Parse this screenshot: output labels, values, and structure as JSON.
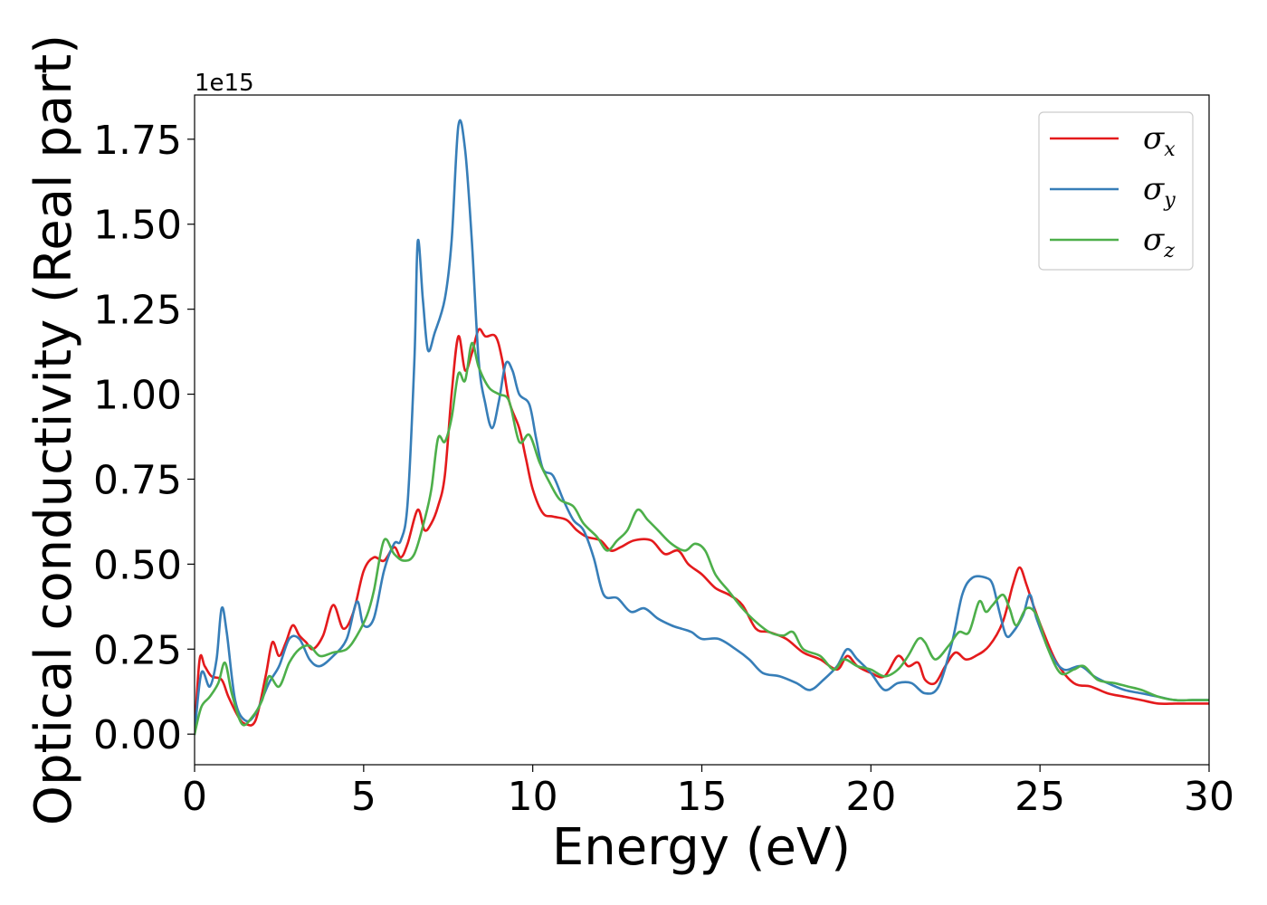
{
  "chart_data": {
    "type": "line",
    "xlabel": "Energy (eV)",
    "ylabel": "Optical conductivity (Real part)",
    "y_offset_label": "1e15",
    "xlim": [
      0,
      30
    ],
    "ylim": [
      -0.09,
      1.88
    ],
    "x_ticks": [
      0,
      5,
      10,
      15,
      20,
      25,
      30
    ],
    "x_tick_labels": [
      "0",
      "5",
      "10",
      "15",
      "20",
      "25",
      "30"
    ],
    "y_ticks": [
      0.0,
      0.25,
      0.5,
      0.75,
      1.0,
      1.25,
      1.5,
      1.75
    ],
    "y_tick_labels": [
      "0.00",
      "0.25",
      "0.50",
      "0.75",
      "1.00",
      "1.25",
      "1.50",
      "1.75"
    ],
    "grid": false,
    "legend_position": "top-right",
    "series": [
      {
        "name": "σx",
        "legend_symbol": "σ",
        "legend_sub": "x",
        "color": "#e41a1c",
        "points": [
          [
            0,
            0.0
          ],
          [
            0.15,
            0.22
          ],
          [
            0.3,
            0.2
          ],
          [
            0.5,
            0.17
          ],
          [
            0.8,
            0.16
          ],
          [
            1.0,
            0.11
          ],
          [
            1.3,
            0.05
          ],
          [
            1.5,
            0.03
          ],
          [
            1.8,
            0.04
          ],
          [
            2.1,
            0.17
          ],
          [
            2.3,
            0.27
          ],
          [
            2.5,
            0.23
          ],
          [
            2.7,
            0.27
          ],
          [
            2.9,
            0.32
          ],
          [
            3.1,
            0.29
          ],
          [
            3.3,
            0.27
          ],
          [
            3.5,
            0.25
          ],
          [
            3.8,
            0.29
          ],
          [
            4.1,
            0.38
          ],
          [
            4.4,
            0.31
          ],
          [
            4.7,
            0.36
          ],
          [
            5.0,
            0.48
          ],
          [
            5.3,
            0.52
          ],
          [
            5.6,
            0.51
          ],
          [
            5.9,
            0.55
          ],
          [
            6.1,
            0.52
          ],
          [
            6.3,
            0.56
          ],
          [
            6.6,
            0.66
          ],
          [
            6.8,
            0.6
          ],
          [
            7.0,
            0.62
          ],
          [
            7.2,
            0.67
          ],
          [
            7.4,
            0.76
          ],
          [
            7.6,
            1.0
          ],
          [
            7.8,
            1.17
          ],
          [
            8.0,
            1.07
          ],
          [
            8.2,
            1.12
          ],
          [
            8.4,
            1.19
          ],
          [
            8.6,
            1.17
          ],
          [
            8.9,
            1.17
          ],
          [
            9.1,
            1.1
          ],
          [
            9.3,
            0.98
          ],
          [
            9.6,
            0.9
          ],
          [
            9.8,
            0.81
          ],
          [
            10.0,
            0.72
          ],
          [
            10.3,
            0.65
          ],
          [
            10.6,
            0.64
          ],
          [
            11.0,
            0.63
          ],
          [
            11.3,
            0.6
          ],
          [
            11.6,
            0.58
          ],
          [
            12.0,
            0.57
          ],
          [
            12.3,
            0.54
          ],
          [
            12.6,
            0.55
          ],
          [
            13.0,
            0.57
          ],
          [
            13.5,
            0.57
          ],
          [
            13.9,
            0.53
          ],
          [
            14.3,
            0.54
          ],
          [
            14.6,
            0.5
          ],
          [
            15.0,
            0.47
          ],
          [
            15.4,
            0.43
          ],
          [
            15.8,
            0.41
          ],
          [
            16.2,
            0.38
          ],
          [
            16.6,
            0.31
          ],
          [
            17.0,
            0.3
          ],
          [
            17.5,
            0.28
          ],
          [
            18.0,
            0.24
          ],
          [
            18.5,
            0.22
          ],
          [
            19.0,
            0.19
          ],
          [
            19.3,
            0.23
          ],
          [
            19.6,
            0.2
          ],
          [
            20.0,
            0.18
          ],
          [
            20.4,
            0.17
          ],
          [
            20.8,
            0.23
          ],
          [
            21.1,
            0.2
          ],
          [
            21.4,
            0.21
          ],
          [
            21.6,
            0.16
          ],
          [
            21.9,
            0.15
          ],
          [
            22.2,
            0.2
          ],
          [
            22.5,
            0.24
          ],
          [
            22.8,
            0.22
          ],
          [
            23.1,
            0.23
          ],
          [
            23.5,
            0.26
          ],
          [
            23.9,
            0.33
          ],
          [
            24.2,
            0.44
          ],
          [
            24.4,
            0.49
          ],
          [
            24.6,
            0.44
          ],
          [
            24.8,
            0.38
          ],
          [
            25.1,
            0.3
          ],
          [
            25.5,
            0.21
          ],
          [
            26.0,
            0.15
          ],
          [
            26.5,
            0.14
          ],
          [
            27.0,
            0.12
          ],
          [
            27.5,
            0.11
          ],
          [
            28.0,
            0.1
          ],
          [
            28.5,
            0.09
          ],
          [
            29.0,
            0.09
          ],
          [
            29.5,
            0.09
          ],
          [
            30.0,
            0.09
          ]
        ]
      },
      {
        "name": "σy",
        "legend_symbol": "σ",
        "legend_sub": "y",
        "color": "#377eb8",
        "points": [
          [
            0,
            0.0
          ],
          [
            0.2,
            0.18
          ],
          [
            0.45,
            0.14
          ],
          [
            0.65,
            0.22
          ],
          [
            0.8,
            0.37
          ],
          [
            0.95,
            0.3
          ],
          [
            1.2,
            0.1
          ],
          [
            1.5,
            0.04
          ],
          [
            1.8,
            0.06
          ],
          [
            2.2,
            0.15
          ],
          [
            2.5,
            0.2
          ],
          [
            2.8,
            0.28
          ],
          [
            3.1,
            0.28
          ],
          [
            3.4,
            0.22
          ],
          [
            3.7,
            0.2
          ],
          [
            4.1,
            0.23
          ],
          [
            4.5,
            0.28
          ],
          [
            4.8,
            0.39
          ],
          [
            5.0,
            0.32
          ],
          [
            5.3,
            0.34
          ],
          [
            5.6,
            0.48
          ],
          [
            5.9,
            0.56
          ],
          [
            6.1,
            0.57
          ],
          [
            6.3,
            0.68
          ],
          [
            6.5,
            1.1
          ],
          [
            6.6,
            1.45
          ],
          [
            6.75,
            1.28
          ],
          [
            6.9,
            1.13
          ],
          [
            7.1,
            1.18
          ],
          [
            7.4,
            1.28
          ],
          [
            7.6,
            1.45
          ],
          [
            7.8,
            1.79
          ],
          [
            8.0,
            1.72
          ],
          [
            8.2,
            1.45
          ],
          [
            8.4,
            1.1
          ],
          [
            8.6,
            0.97
          ],
          [
            8.8,
            0.9
          ],
          [
            9.0,
            0.98
          ],
          [
            9.2,
            1.09
          ],
          [
            9.4,
            1.07
          ],
          [
            9.6,
            1.0
          ],
          [
            9.9,
            0.97
          ],
          [
            10.1,
            0.87
          ],
          [
            10.3,
            0.78
          ],
          [
            10.6,
            0.76
          ],
          [
            10.9,
            0.69
          ],
          [
            11.2,
            0.63
          ],
          [
            11.5,
            0.6
          ],
          [
            11.8,
            0.52
          ],
          [
            12.1,
            0.41
          ],
          [
            12.5,
            0.4
          ],
          [
            12.9,
            0.36
          ],
          [
            13.3,
            0.37
          ],
          [
            13.7,
            0.34
          ],
          [
            14.1,
            0.32
          ],
          [
            14.4,
            0.31
          ],
          [
            14.7,
            0.3
          ],
          [
            15.0,
            0.28
          ],
          [
            15.5,
            0.28
          ],
          [
            16.0,
            0.25
          ],
          [
            16.4,
            0.22
          ],
          [
            16.8,
            0.18
          ],
          [
            17.3,
            0.17
          ],
          [
            17.8,
            0.15
          ],
          [
            18.2,
            0.13
          ],
          [
            18.6,
            0.16
          ],
          [
            19.0,
            0.2
          ],
          [
            19.3,
            0.25
          ],
          [
            19.6,
            0.22
          ],
          [
            20.0,
            0.18
          ],
          [
            20.4,
            0.13
          ],
          [
            20.8,
            0.15
          ],
          [
            21.2,
            0.15
          ],
          [
            21.6,
            0.12
          ],
          [
            22.0,
            0.14
          ],
          [
            22.4,
            0.27
          ],
          [
            22.7,
            0.41
          ],
          [
            23.0,
            0.46
          ],
          [
            23.4,
            0.46
          ],
          [
            23.6,
            0.44
          ],
          [
            23.8,
            0.36
          ],
          [
            24.0,
            0.29
          ],
          [
            24.2,
            0.3
          ],
          [
            24.5,
            0.35
          ],
          [
            24.7,
            0.41
          ],
          [
            24.9,
            0.34
          ],
          [
            25.3,
            0.24
          ],
          [
            25.7,
            0.19
          ],
          [
            26.2,
            0.2
          ],
          [
            26.6,
            0.17
          ],
          [
            27.0,
            0.15
          ],
          [
            27.5,
            0.13
          ],
          [
            28.0,
            0.12
          ],
          [
            28.5,
            0.11
          ],
          [
            29.0,
            0.1
          ],
          [
            29.5,
            0.1
          ],
          [
            30.0,
            0.1
          ]
        ]
      },
      {
        "name": "σz",
        "legend_symbol": "σ",
        "legend_sub": "z",
        "color": "#4daf4a",
        "points": [
          [
            0,
            0.0
          ],
          [
            0.2,
            0.08
          ],
          [
            0.45,
            0.11
          ],
          [
            0.7,
            0.15
          ],
          [
            0.9,
            0.21
          ],
          [
            1.1,
            0.12
          ],
          [
            1.4,
            0.03
          ],
          [
            1.7,
            0.05
          ],
          [
            2.0,
            0.1
          ],
          [
            2.2,
            0.17
          ],
          [
            2.5,
            0.14
          ],
          [
            2.8,
            0.21
          ],
          [
            3.1,
            0.25
          ],
          [
            3.4,
            0.26
          ],
          [
            3.7,
            0.23
          ],
          [
            4.1,
            0.24
          ],
          [
            4.5,
            0.25
          ],
          [
            4.8,
            0.29
          ],
          [
            5.1,
            0.35
          ],
          [
            5.3,
            0.42
          ],
          [
            5.6,
            0.57
          ],
          [
            5.9,
            0.53
          ],
          [
            6.2,
            0.51
          ],
          [
            6.5,
            0.53
          ],
          [
            6.8,
            0.63
          ],
          [
            7.0,
            0.72
          ],
          [
            7.2,
            0.87
          ],
          [
            7.4,
            0.86
          ],
          [
            7.6,
            0.93
          ],
          [
            7.8,
            1.06
          ],
          [
            8.0,
            1.04
          ],
          [
            8.2,
            1.15
          ],
          [
            8.4,
            1.08
          ],
          [
            8.7,
            1.02
          ],
          [
            9.0,
            1.0
          ],
          [
            9.3,
            0.98
          ],
          [
            9.6,
            0.86
          ],
          [
            9.9,
            0.88
          ],
          [
            10.2,
            0.8
          ],
          [
            10.5,
            0.74
          ],
          [
            10.8,
            0.69
          ],
          [
            11.2,
            0.67
          ],
          [
            11.5,
            0.62
          ],
          [
            11.9,
            0.58
          ],
          [
            12.2,
            0.54
          ],
          [
            12.5,
            0.57
          ],
          [
            12.8,
            0.6
          ],
          [
            13.1,
            0.66
          ],
          [
            13.4,
            0.63
          ],
          [
            13.7,
            0.6
          ],
          [
            14.1,
            0.56
          ],
          [
            14.5,
            0.54
          ],
          [
            14.8,
            0.56
          ],
          [
            15.1,
            0.54
          ],
          [
            15.4,
            0.47
          ],
          [
            15.8,
            0.42
          ],
          [
            16.2,
            0.37
          ],
          [
            16.6,
            0.33
          ],
          [
            17.0,
            0.3
          ],
          [
            17.4,
            0.29
          ],
          [
            17.7,
            0.3
          ],
          [
            18.0,
            0.25
          ],
          [
            18.5,
            0.23
          ],
          [
            18.9,
            0.19
          ],
          [
            19.2,
            0.22
          ],
          [
            19.6,
            0.2
          ],
          [
            20.0,
            0.19
          ],
          [
            20.4,
            0.17
          ],
          [
            20.8,
            0.19
          ],
          [
            21.1,
            0.23
          ],
          [
            21.4,
            0.28
          ],
          [
            21.6,
            0.27
          ],
          [
            21.9,
            0.22
          ],
          [
            22.3,
            0.26
          ],
          [
            22.6,
            0.3
          ],
          [
            22.9,
            0.3
          ],
          [
            23.2,
            0.39
          ],
          [
            23.4,
            0.36
          ],
          [
            23.6,
            0.38
          ],
          [
            23.9,
            0.41
          ],
          [
            24.1,
            0.37
          ],
          [
            24.3,
            0.32
          ],
          [
            24.6,
            0.37
          ],
          [
            24.9,
            0.35
          ],
          [
            25.2,
            0.26
          ],
          [
            25.6,
            0.18
          ],
          [
            26.0,
            0.19
          ],
          [
            26.3,
            0.2
          ],
          [
            26.7,
            0.16
          ],
          [
            27.2,
            0.15
          ],
          [
            27.6,
            0.14
          ],
          [
            28.0,
            0.13
          ],
          [
            28.5,
            0.11
          ],
          [
            29.0,
            0.1
          ],
          [
            29.5,
            0.1
          ],
          [
            30.0,
            0.1
          ]
        ]
      }
    ]
  }
}
